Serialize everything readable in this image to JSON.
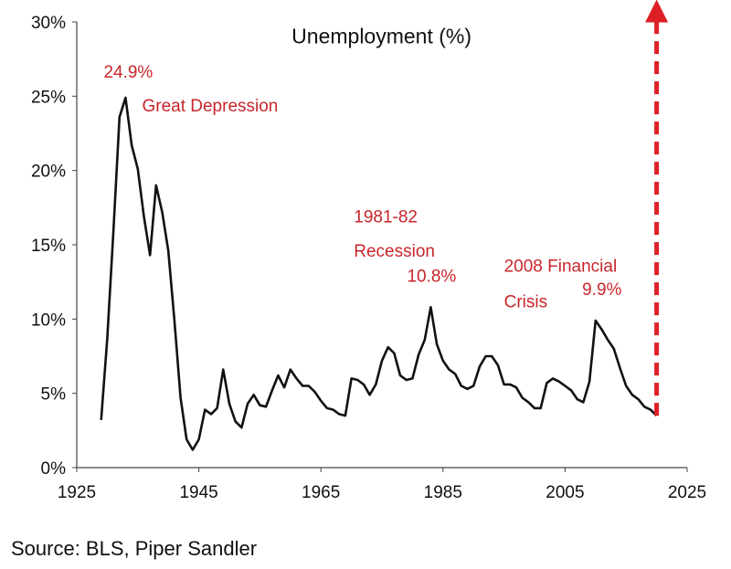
{
  "chart_data": {
    "type": "line",
    "title": "Unemployment (%)",
    "xlabel": "",
    "ylabel": "",
    "xlim": [
      1925,
      2025
    ],
    "ylim": [
      0,
      30
    ],
    "x_ticks": [
      1925,
      1945,
      1965,
      1985,
      2005,
      2025
    ],
    "y_ticks": [
      0,
      5,
      10,
      15,
      20,
      25,
      30
    ],
    "x_tick_labels": [
      "1925",
      "1945",
      "1965",
      "1985",
      "2005",
      "2025"
    ],
    "y_tick_labels": [
      "0%",
      "5%",
      "10%",
      "15%",
      "20%",
      "25%",
      "30%"
    ],
    "grid": false,
    "series": [
      {
        "x": [
          1929,
          1930,
          1931,
          1932,
          1933,
          1934,
          1935,
          1936,
          1937,
          1938,
          1939,
          1940,
          1941,
          1942,
          1943,
          1944,
          1945,
          1946,
          1947,
          1948,
          1949,
          1950,
          1951,
          1952,
          1953,
          1954,
          1955,
          1956,
          1957,
          1958,
          1959,
          1960,
          1961,
          1962,
          1963,
          1964,
          1965,
          1966,
          1967,
          1968,
          1969,
          1970,
          1971,
          1972,
          1973,
          1974,
          1975,
          1976,
          1977,
          1978,
          1979,
          1980,
          1981,
          1982,
          1983,
          1984,
          1985,
          1986,
          1987,
          1988,
          1989,
          1990,
          1991,
          1992,
          1993,
          1994,
          1995,
          1996,
          1997,
          1998,
          1999,
          2000,
          2001,
          2002,
          2003,
          2004,
          2005,
          2006,
          2007,
          2008,
          2009,
          2010,
          2011,
          2012,
          2013,
          2014,
          2015,
          2016,
          2017,
          2018,
          2019,
          2020
        ],
        "y": [
          3.2,
          8.7,
          15.9,
          23.6,
          24.9,
          21.7,
          20.1,
          16.9,
          14.3,
          19.0,
          17.2,
          14.6,
          9.9,
          4.7,
          1.9,
          1.2,
          1.9,
          3.9,
          3.6,
          4.0,
          6.6,
          4.3,
          3.1,
          2.7,
          4.3,
          4.9,
          4.2,
          4.1,
          5.2,
          6.2,
          5.4,
          6.6,
          6.0,
          5.5,
          5.5,
          5.1,
          4.5,
          4.0,
          3.9,
          3.6,
          3.5,
          6.0,
          5.9,
          5.6,
          4.9,
          5.6,
          7.2,
          8.1,
          7.7,
          6.2,
          5.9,
          6.0,
          7.6,
          8.6,
          10.8,
          8.3,
          7.2,
          6.6,
          6.3,
          5.5,
          5.3,
          5.5,
          6.8,
          7.5,
          7.5,
          6.9,
          5.6,
          5.6,
          5.4,
          4.7,
          4.4,
          4.0,
          4.0,
          5.7,
          6.0,
          5.8,
          5.5,
          5.2,
          4.6,
          4.4,
          5.8,
          9.9,
          9.3,
          8.6,
          8.0,
          6.7,
          5.5,
          4.9,
          4.6,
          4.1,
          3.9,
          3.5
        ]
      }
    ],
    "annotations": [
      {
        "text": "24.9%",
        "x": 1933,
        "y": 24.9
      },
      {
        "text": "Great Depression",
        "x": 1936,
        "y": 23.0
      },
      {
        "text": "1981-82",
        "x": 1971,
        "y": 16.5
      },
      {
        "text": "Recession",
        "x": 1971,
        "y": 14.2
      },
      {
        "text": "10.8%",
        "x": 1983,
        "y": 10.8
      },
      {
        "text": "2008 Financial",
        "x": 1995,
        "y": 13.2
      },
      {
        "text": "Crisis",
        "x": 1995,
        "y": 10.8
      },
      {
        "text": "9.9%",
        "x": 2009,
        "y": 9.9
      }
    ],
    "arrow": {
      "x": 2020,
      "y_from": 3.5,
      "color": "#dd1f26",
      "style": "dashed"
    },
    "colors": {
      "line": "#111111",
      "annotation": "#c8262b",
      "axis": "#444444"
    }
  },
  "source": "Source: BLS, Piper Sandler"
}
